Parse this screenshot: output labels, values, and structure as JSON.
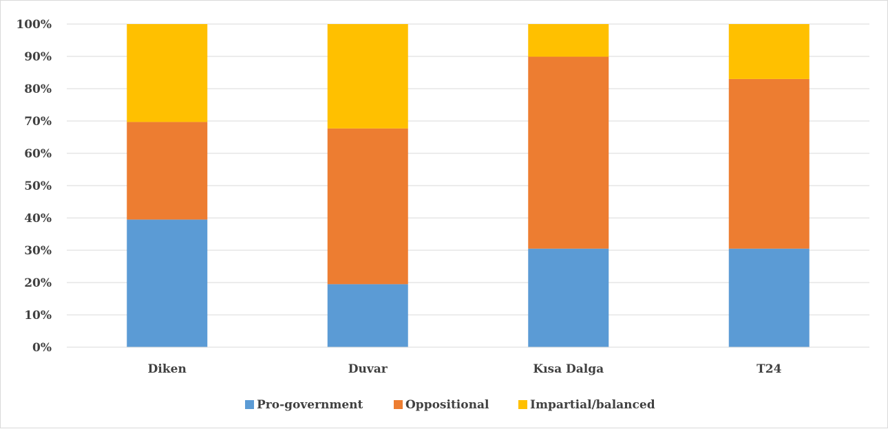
{
  "chart_data": {
    "type": "bar",
    "stacked": true,
    "percent": true,
    "categories": [
      "Diken",
      "Duvar",
      "Kısa Dalga",
      "T24"
    ],
    "series": [
      {
        "name": "Pro-government",
        "color": "#5B9BD5",
        "values": [
          39.5,
          19.5,
          30.5,
          30.5
        ]
      },
      {
        "name": "Oppositional",
        "color": "#ED7D31",
        "values": [
          30.2,
          48.2,
          59.4,
          52.5
        ]
      },
      {
        "name": "Impartial/balanced",
        "color": "#FFC000",
        "values": [
          30.3,
          32.3,
          10.1,
          17.0
        ]
      }
    ],
    "y_ticks": [
      "0%",
      "10%",
      "20%",
      "30%",
      "40%",
      "50%",
      "60%",
      "70%",
      "80%",
      "90%",
      "100%"
    ],
    "ylim": [
      0,
      100
    ],
    "grid": true,
    "legend_position": "bottom"
  }
}
